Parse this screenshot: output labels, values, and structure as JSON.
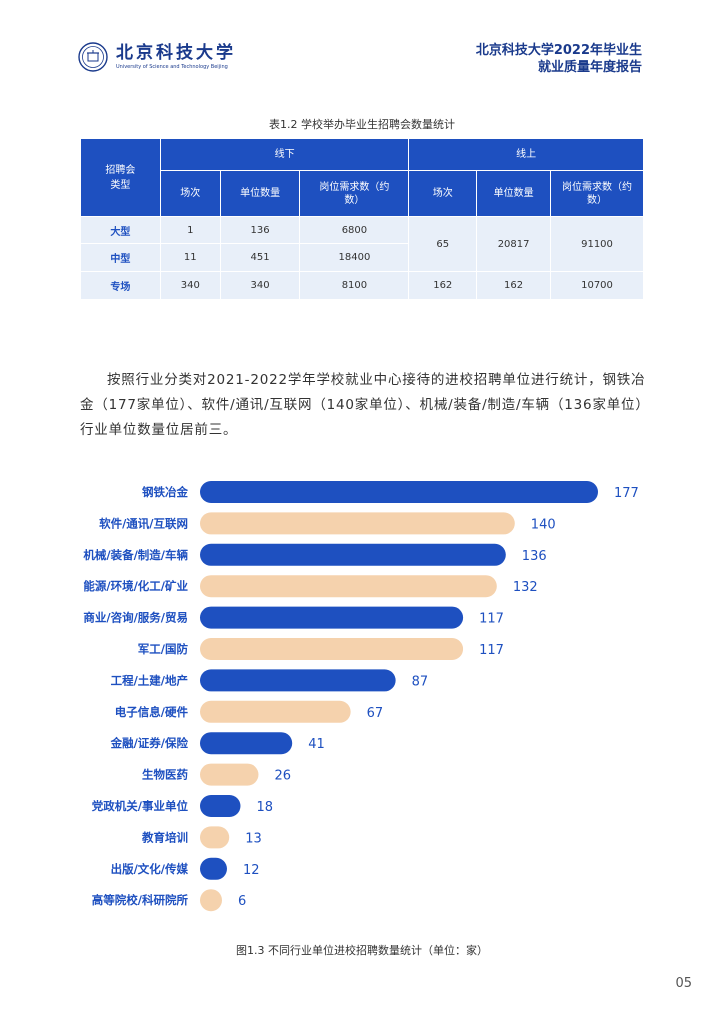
{
  "header": {
    "logo_cn": "北京科技大学",
    "logo_en": "University of Science and Technology Beijing",
    "report_line1": "北京科技大学2022年毕业生",
    "report_line2": "就业质量年度报告"
  },
  "table": {
    "caption": "表1.2  学校举办毕业生招聘会数量统计",
    "type_header": "招聘会类型",
    "offline_header": "线下",
    "online_header": "线上",
    "sub_headers": [
      "场次",
      "单位数量",
      "岗位需求数（约数）",
      "场次",
      "单位数量",
      "岗位需求数（约数）"
    ],
    "rows": [
      {
        "type": "大型",
        "off_sessions": "1",
        "off_units": "136",
        "off_jobs": "6800"
      },
      {
        "type": "中型",
        "off_sessions": "11",
        "off_units": "451",
        "off_jobs": "18400"
      },
      {
        "type": "专场",
        "off_sessions": "340",
        "off_units": "340",
        "off_jobs": "8100",
        "on_sessions": "162",
        "on_units": "162",
        "on_jobs": "10700"
      }
    ],
    "merged_online": {
      "sessions": "65",
      "units": "20817",
      "jobs": "91100"
    }
  },
  "paragraph": "按照行业分类对2021-2022学年学校就业中心接待的进校招聘单位进行统计，钢铁冶金（177家单位）、软件/通讯/互联网（140家单位）、机械/装备/制造/车辆（136家单位）行业单位数量位居前三。",
  "chart_data": {
    "type": "bar",
    "orientation": "horizontal",
    "title": "图1.3  不同行业单位进校招聘数量统计（单位：家）",
    "categories": [
      "钢铁冶金",
      "软件/通讯/互联网",
      "机械/装备/制造/车辆",
      "能源/环境/化工/矿业",
      "商业/咨询/服务/贸易",
      "军工/国防",
      "工程/土建/地产",
      "电子信息/硬件",
      "金融/证券/保险",
      "生物医药",
      "党政机关/事业单位",
      "教育培训",
      "出版/文化/传媒",
      "高等院校/科研院所"
    ],
    "values": [
      177,
      140,
      136,
      132,
      117,
      117,
      87,
      67,
      41,
      26,
      18,
      13,
      12,
      6
    ],
    "colors": [
      "#1e50c0",
      "#f5d2ad"
    ],
    "xlim": [
      0,
      177
    ]
  },
  "page_number": "05"
}
